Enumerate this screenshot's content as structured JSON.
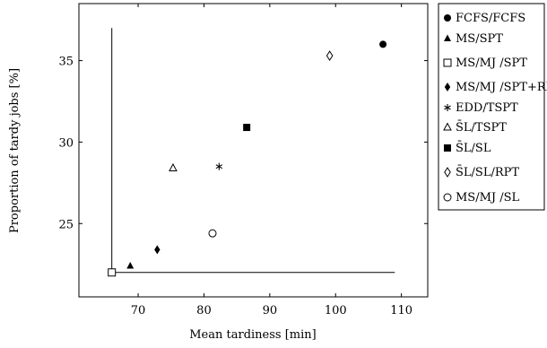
{
  "chart_data": {
    "type": "scatter",
    "xlabel": "Mean tardiness [min]",
    "ylabel": "Proportion of tardy jobs [%]",
    "xlim": [
      61,
      114
    ],
    "ylim": [
      20.5,
      38.5
    ],
    "xticks": [
      70,
      80,
      90,
      100,
      110
    ],
    "yticks": [
      25,
      30,
      35
    ],
    "legend_position": "outside-right",
    "series": [
      {
        "name": "FCFS/FCFS",
        "marker": "filled-circle",
        "x": 107.2,
        "y": 36.0
      },
      {
        "name": "MS/SPT",
        "marker": "filled-triangle",
        "x": 68.8,
        "y": 22.4
      },
      {
        "name": "MS/MJ /SPT",
        "marker": "open-square",
        "x": 66.0,
        "y": 22.0
      },
      {
        "name": "MS/MJ /SPT+RPT",
        "marker": "filled-diamond",
        "x": 72.9,
        "y": 23.4
      },
      {
        "name": "EDD/TSPT",
        "marker": "star",
        "x": 82.3,
        "y": 28.5
      },
      {
        "name": "S̄L/TSPT",
        "marker": "open-triangle",
        "x": 75.3,
        "y": 28.4
      },
      {
        "name": "S̄L/SL",
        "marker": "filled-square",
        "x": 86.5,
        "y": 30.9
      },
      {
        "name": "S̄L/SL/RPT",
        "marker": "open-diamond",
        "x": 99.1,
        "y": 35.3
      },
      {
        "name": "MS/MJ /SL",
        "marker": "open-circle",
        "x": 81.3,
        "y": 24.4
      }
    ],
    "pareto_lines": [
      {
        "x": [
          66.0,
          66.0
        ],
        "y": [
          37.0,
          22.0
        ]
      },
      {
        "x": [
          66.0,
          109.0
        ],
        "y": [
          22.0,
          22.0
        ]
      }
    ]
  }
}
